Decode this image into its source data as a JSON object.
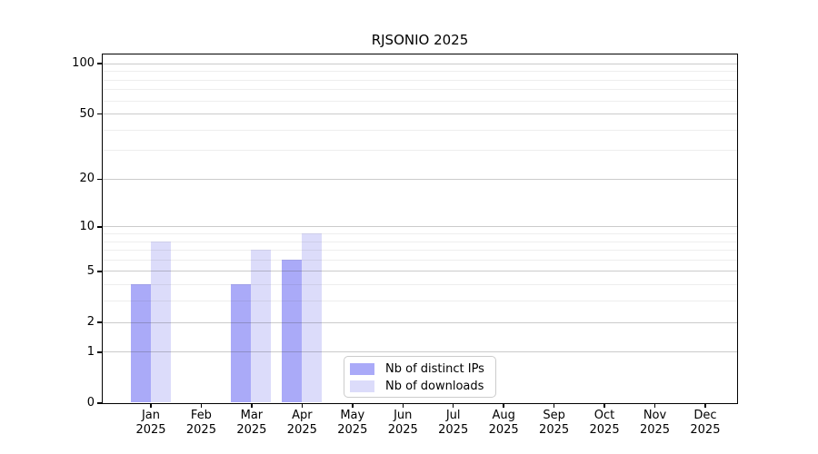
{
  "chart_data": {
    "type": "bar",
    "title": "RJSONIO 2025",
    "categories": [
      {
        "month": "Jan",
        "year": "2025"
      },
      {
        "month": "Feb",
        "year": "2025"
      },
      {
        "month": "Mar",
        "year": "2025"
      },
      {
        "month": "Apr",
        "year": "2025"
      },
      {
        "month": "May",
        "year": "2025"
      },
      {
        "month": "Jun",
        "year": "2025"
      },
      {
        "month": "Jul",
        "year": "2025"
      },
      {
        "month": "Aug",
        "year": "2025"
      },
      {
        "month": "Sep",
        "year": "2025"
      },
      {
        "month": "Oct",
        "year": "2025"
      },
      {
        "month": "Nov",
        "year": "2025"
      },
      {
        "month": "Dec",
        "year": "2025"
      }
    ],
    "series": [
      {
        "name": "Nb of distinct IPs",
        "color": "#aaaaf8",
        "values": [
          4,
          0,
          4,
          6,
          0,
          0,
          0,
          0,
          0,
          0,
          0,
          0
        ]
      },
      {
        "name": "Nb of downloads",
        "color": "#dcdcfa",
        "values": [
          8,
          0,
          7,
          9,
          0,
          0,
          0,
          0,
          0,
          0,
          0,
          0
        ]
      }
    ],
    "xlabel": "",
    "ylabel": "",
    "yscale": "log1p",
    "yticks": [
      0,
      1,
      2,
      5,
      10,
      20,
      50,
      100
    ],
    "yticks_minor": [
      3,
      4,
      6,
      7,
      8,
      9,
      30,
      40,
      60,
      70,
      80,
      90
    ],
    "ylim": [
      0,
      113.5
    ],
    "grid": "horizontal, drawn above bars",
    "legend_position": "lower center"
  }
}
